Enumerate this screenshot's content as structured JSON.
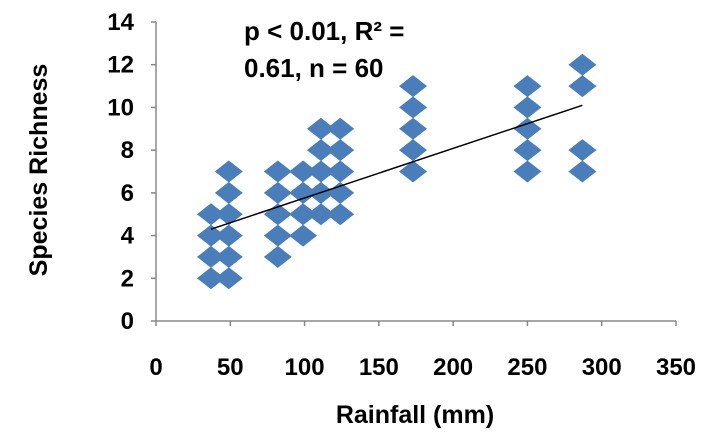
{
  "chart_data": {
    "type": "scatter",
    "xlabel": "Rainfall (mm)",
    "ylabel": "Species Richness",
    "xlim": [
      0,
      350
    ],
    "ylim": [
      0,
      14
    ],
    "xticks": [
      0,
      50,
      100,
      150,
      200,
      250,
      300,
      350
    ],
    "yticks": [
      0,
      2,
      4,
      6,
      8,
      10,
      12,
      14
    ],
    "grid": false,
    "legend": "none",
    "marker": "diamond",
    "marker_color": "#4a7ebb",
    "trendline_color": "#000000",
    "annotation_lines": [
      "p < 0.01, R² =",
      "0.61, n = 60"
    ],
    "trendline": {
      "type": "linear",
      "x": [
        37,
        287
      ],
      "y": [
        4.3,
        10.1
      ]
    },
    "points": [
      {
        "x": 37,
        "y": 2
      },
      {
        "x": 37,
        "y": 3
      },
      {
        "x": 37,
        "y": 4
      },
      {
        "x": 37,
        "y": 5
      },
      {
        "x": 49,
        "y": 2
      },
      {
        "x": 49,
        "y": 3
      },
      {
        "x": 49,
        "y": 4
      },
      {
        "x": 49,
        "y": 5
      },
      {
        "x": 49,
        "y": 6
      },
      {
        "x": 49,
        "y": 7
      },
      {
        "x": 82,
        "y": 3
      },
      {
        "x": 82,
        "y": 4
      },
      {
        "x": 82,
        "y": 5
      },
      {
        "x": 82,
        "y": 6
      },
      {
        "x": 82,
        "y": 7
      },
      {
        "x": 99,
        "y": 4
      },
      {
        "x": 99,
        "y": 5
      },
      {
        "x": 99,
        "y": 6
      },
      {
        "x": 99,
        "y": 7
      },
      {
        "x": 111,
        "y": 5
      },
      {
        "x": 111,
        "y": 6
      },
      {
        "x": 111,
        "y": 7
      },
      {
        "x": 111,
        "y": 8
      },
      {
        "x": 111,
        "y": 9
      },
      {
        "x": 124,
        "y": 5
      },
      {
        "x": 124,
        "y": 6
      },
      {
        "x": 124,
        "y": 7
      },
      {
        "x": 124,
        "y": 8
      },
      {
        "x": 124,
        "y": 9
      },
      {
        "x": 173,
        "y": 7
      },
      {
        "x": 173,
        "y": 8
      },
      {
        "x": 173,
        "y": 9
      },
      {
        "x": 173,
        "y": 10
      },
      {
        "x": 173,
        "y": 11
      },
      {
        "x": 250,
        "y": 7
      },
      {
        "x": 250,
        "y": 8
      },
      {
        "x": 250,
        "y": 9
      },
      {
        "x": 250,
        "y": 10
      },
      {
        "x": 250,
        "y": 11
      },
      {
        "x": 287,
        "y": 7
      },
      {
        "x": 287,
        "y": 8
      },
      {
        "x": 287,
        "y": 11
      },
      {
        "x": 287,
        "y": 12
      }
    ]
  }
}
